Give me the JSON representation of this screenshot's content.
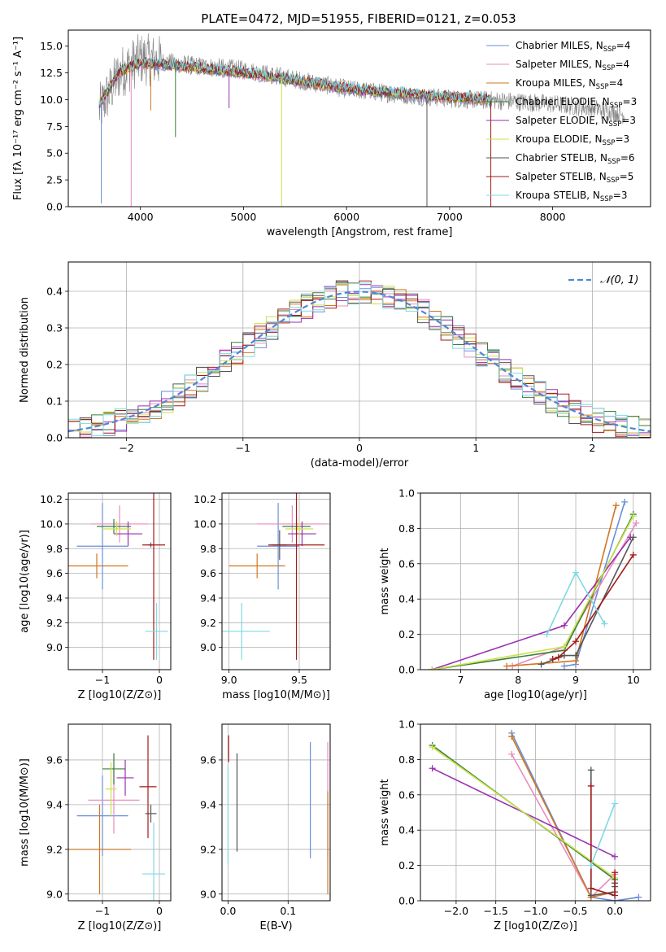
{
  "figure": {
    "title": "PLATE=0472, MJD=51955, FIBERID=0121, z=0.053"
  },
  "colors": {
    "Chabrier MILES": "#6a8fd8",
    "Salpeter MILES": "#e98bbf",
    "Kroupa MILES": "#d2761f",
    "Chabrier ELODIE": "#3a7d3a",
    "Salpeter ELODIE": "#9a2fb0",
    "Kroupa ELODIE": "#c9e24a",
    "Chabrier STELIB": "#555555",
    "Salpeter STELIB": "#a31a1a",
    "Kroupa STELIB": "#7ed9e3",
    "data": "#808080",
    "normal": "#4f86d6",
    "grid": "#b0b0b0"
  },
  "legend": [
    {
      "name": "Chabrier MILES",
      "nssp": "4"
    },
    {
      "name": "Salpeter MILES",
      "nssp": "4"
    },
    {
      "name": "Kroupa MILES",
      "nssp": "4"
    },
    {
      "name": "Chabrier ELODIE",
      "nssp": "3"
    },
    {
      "name": "Salpeter ELODIE",
      "nssp": "3"
    },
    {
      "name": "Kroupa ELODIE",
      "nssp": "3"
    },
    {
      "name": "Chabrier STELIB",
      "nssp": "6"
    },
    {
      "name": "Salpeter STELIB",
      "nssp": "5"
    },
    {
      "name": "Kroupa STELIB",
      "nssp": "3"
    }
  ],
  "chart_data": [
    {
      "id": "spectrum",
      "type": "line",
      "xlabel": "wavelength [Angstrom, rest frame]",
      "ylabel": "Flux [fλ 10⁻¹⁷ erg cm⁻² s⁻¹ A⁻¹]",
      "xlim": [
        3300,
        8950
      ],
      "ylim": [
        0,
        16.5
      ],
      "xticks": [
        4000,
        5000,
        6000,
        7000,
        8000
      ],
      "yticks": [
        0.0,
        2.5,
        5.0,
        7.5,
        10.0,
        12.5,
        15.0
      ],
      "grid": false,
      "legend_position": "top-right",
      "x_start": 3600,
      "x_end": 8700,
      "data_profile": [
        [
          3600,
          9.0
        ],
        [
          3800,
          12.5
        ],
        [
          4000,
          13.8
        ],
        [
          4200,
          13.6
        ],
        [
          4500,
          13.2
        ],
        [
          5000,
          12.8
        ],
        [
          5500,
          11.9
        ],
        [
          6000,
          11.0
        ],
        [
          6500,
          10.5
        ],
        [
          7000,
          10.1
        ],
        [
          7500,
          9.9
        ],
        [
          8000,
          9.6
        ],
        [
          8400,
          9.2
        ],
        [
          8700,
          8.6
        ]
      ],
      "model_profile": [
        [
          3600,
          9.5
        ],
        [
          3800,
          12.7
        ],
        [
          4000,
          13.4
        ],
        [
          4200,
          13.3
        ],
        [
          4500,
          13.0
        ],
        [
          5000,
          12.5
        ],
        [
          5500,
          11.8
        ],
        [
          6000,
          11.0
        ],
        [
          6500,
          10.6
        ],
        [
          7000,
          10.2
        ],
        [
          7400,
          10.0
        ]
      ],
      "spikes": [
        [
          3620,
          0.3
        ],
        [
          3910,
          0.0
        ],
        [
          4100,
          9.0
        ],
        [
          4340,
          6.5
        ],
        [
          4860,
          9.2
        ],
        [
          5370,
          0.0
        ],
        [
          6780,
          0.0
        ],
        [
          7400,
          0.0
        ]
      ]
    },
    {
      "id": "residuals",
      "type": "step",
      "xlabel": "(data-model)/error",
      "ylabel": "Normed distribution",
      "xlim": [
        -2.5,
        2.5
      ],
      "ylim": [
        0,
        0.48
      ],
      "xticks": [
        -2,
        -1,
        0,
        1,
        2
      ],
      "yticks": [
        0.0,
        0.1,
        0.2,
        0.3,
        0.4
      ],
      "grid": true,
      "legend_position": "top-right",
      "reference": {
        "name": "𝒩(0, 1)",
        "mean": 0,
        "sigma": 1
      },
      "bin_width": 0.1
    },
    {
      "id": "age-vs-Z",
      "type": "errorbar",
      "xlabel": "Z [log10(Z/Z⊙)]",
      "ylabel": "age [log10(age/yr)]",
      "xlim": [
        -1.6,
        0.2
      ],
      "ylim": [
        8.82,
        10.25
      ],
      "xticks": [
        -1,
        0
      ],
      "yticks": [
        9.0,
        9.2,
        9.4,
        9.6,
        9.8,
        10.0,
        10.2
      ],
      "grid": true,
      "points": [
        {
          "series": "Chabrier MILES",
          "x": -1.0,
          "xerr": 0.45,
          "y": 9.82,
          "yerr": 0.35
        },
        {
          "series": "Salpeter MILES",
          "x": -0.7,
          "xerr": 0.5,
          "y": 10.0,
          "yerr": 0.15
        },
        {
          "series": "Kroupa MILES",
          "x": -1.1,
          "xerr": 0.55,
          "y": 9.66,
          "yerr": 0.1
        },
        {
          "series": "Chabrier ELODIE",
          "x": -0.8,
          "xerr": 0.3,
          "y": 9.98,
          "yerr": 0.06
        },
        {
          "series": "Salpeter ELODIE",
          "x": -0.55,
          "xerr": 0.25,
          "y": 9.92,
          "yerr": 0.1
        },
        {
          "series": "Kroupa ELODIE",
          "x": -0.75,
          "xerr": 0.25,
          "y": 9.96,
          "yerr": 0.06
        },
        {
          "series": "Chabrier STELIB",
          "x": -0.15,
          "xerr": 0.05,
          "y": 9.83,
          "yerr": 0.02
        },
        {
          "series": "Salpeter STELIB",
          "x": -0.1,
          "xerr": 0.2,
          "y": 9.83,
          "yerr": 0.93
        },
        {
          "series": "Kroupa STELIB",
          "x": -0.05,
          "xerr": 0.2,
          "y": 9.13,
          "yerr": 0.23
        }
      ]
    },
    {
      "id": "age-vs-mass",
      "type": "errorbar",
      "xlabel": "mass [log10(M/M⊙)]",
      "ylabel": "",
      "xlim": [
        8.95,
        9.72
      ],
      "ylim": [
        8.82,
        10.25
      ],
      "xticks": [
        9.0,
        9.5
      ],
      "yticks": [
        9.0,
        9.2,
        9.4,
        9.6,
        9.8,
        10.0,
        10.2
      ],
      "grid": true,
      "points": [
        {
          "series": "Chabrier MILES",
          "x": 9.35,
          "xerr": 0.15,
          "y": 9.82,
          "yerr": 0.35
        },
        {
          "series": "Salpeter MILES",
          "x": 9.45,
          "xerr": 0.25,
          "y": 10.0,
          "yerr": 0.15
        },
        {
          "series": "Kroupa MILES",
          "x": 9.2,
          "xerr": 0.2,
          "y": 9.66,
          "yerr": 0.1
        },
        {
          "series": "Chabrier ELODIE",
          "x": 9.48,
          "xerr": 0.1,
          "y": 9.98,
          "yerr": 0.06
        },
        {
          "series": "Salpeter ELODIE",
          "x": 9.52,
          "xerr": 0.1,
          "y": 9.92,
          "yerr": 0.1
        },
        {
          "series": "Kroupa ELODIE",
          "x": 9.5,
          "xerr": 0.1,
          "y": 9.96,
          "yerr": 0.06
        },
        {
          "series": "Chabrier STELIB",
          "x": 9.36,
          "xerr": 0.05,
          "y": 9.83,
          "yerr": 0.12
        },
        {
          "series": "Salpeter STELIB",
          "x": 9.48,
          "xerr": 0.2,
          "y": 9.83,
          "yerr": 0.93
        },
        {
          "series": "Kroupa STELIB",
          "x": 9.09,
          "xerr": 0.2,
          "y": 9.13,
          "yerr": 0.23
        }
      ]
    },
    {
      "id": "massweight-vs-age",
      "type": "line",
      "xlabel": "age [log10(age/yr)]",
      "ylabel": "mass weight",
      "xlim": [
        6.3,
        10.3
      ],
      "ylim": [
        0,
        1.0
      ],
      "xticks": [
        7,
        8,
        9,
        10
      ],
      "yticks": [
        0.0,
        0.2,
        0.4,
        0.6,
        0.8,
        1.0
      ],
      "grid": true,
      "series": [
        {
          "name": "Chabrier MILES",
          "x": [
            8.8,
            9.0,
            9.85
          ],
          "y": [
            0.02,
            0.03,
            0.95
          ]
        },
        {
          "name": "Salpeter MILES",
          "x": [
            7.9,
            8.8,
            10.05
          ],
          "y": [
            0.02,
            0.13,
            0.83
          ]
        },
        {
          "name": "Kroupa MILES",
          "x": [
            7.8,
            9.0,
            9.7
          ],
          "y": [
            0.02,
            0.05,
            0.93
          ]
        },
        {
          "name": "Chabrier ELODIE",
          "x": [
            6.5,
            8.8,
            10.0
          ],
          "y": [
            0.0,
            0.11,
            0.88
          ]
        },
        {
          "name": "Salpeter ELODIE",
          "x": [
            6.5,
            8.8,
            9.95
          ],
          "y": [
            0.0,
            0.25,
            0.75
          ]
        },
        {
          "name": "Kroupa ELODIE",
          "x": [
            6.5,
            8.8,
            10.0
          ],
          "y": [
            0.0,
            0.13,
            0.87
          ]
        },
        {
          "name": "Chabrier STELIB",
          "x": [
            8.4,
            8.8,
            9.0,
            10.0
          ],
          "y": [
            0.03,
            0.08,
            0.08,
            0.75
          ]
        },
        {
          "name": "Salpeter STELIB",
          "x": [
            8.6,
            8.7,
            9.0,
            10.0
          ],
          "y": [
            0.06,
            0.07,
            0.16,
            0.65
          ]
        },
        {
          "name": "Kroupa STELIB",
          "x": [
            8.5,
            9.0,
            9.5
          ],
          "y": [
            0.2,
            0.55,
            0.26
          ]
        }
      ]
    },
    {
      "id": "mass-vs-Z",
      "type": "errorbar",
      "xlabel": "Z [log10(Z/Z⊙)]",
      "ylabel": "mass [log10(M/M⊙)]",
      "xlim": [
        -1.6,
        0.2
      ],
      "ylim": [
        8.97,
        9.76
      ],
      "xticks": [
        -1,
        0
      ],
      "yticks": [
        9.0,
        9.2,
        9.4,
        9.6
      ],
      "grid": true,
      "points": [
        {
          "series": "Chabrier MILES",
          "x": -1.0,
          "xerr": 0.45,
          "y": 9.35,
          "yerr": 0.18
        },
        {
          "series": "Salpeter MILES",
          "x": -0.8,
          "xerr": 0.45,
          "y": 9.42,
          "yerr": 0.15
        },
        {
          "series": "Kroupa MILES",
          "x": -1.05,
          "xerr": 0.55,
          "y": 9.2,
          "yerr": 0.2
        },
        {
          "series": "Chabrier ELODIE",
          "x": -0.8,
          "xerr": 0.2,
          "y": 9.56,
          "yerr": 0.07
        },
        {
          "series": "Salpeter ELODIE",
          "x": -0.6,
          "xerr": 0.15,
          "y": 9.52,
          "yerr": 0.08
        },
        {
          "series": "Kroupa ELODIE",
          "x": -0.85,
          "xerr": 0.1,
          "y": 9.47,
          "yerr": 0.12
        },
        {
          "series": "Chabrier STELIB",
          "x": -0.15,
          "xerr": 0.1,
          "y": 9.36,
          "yerr": 0.04
        },
        {
          "series": "Salpeter STELIB",
          "x": -0.2,
          "xerr": 0.15,
          "y": 9.48,
          "yerr": 0.23
        },
        {
          "series": "Kroupa STELIB",
          "x": -0.1,
          "xerr": 0.2,
          "y": 9.09,
          "yerr": 0.23
        }
      ]
    },
    {
      "id": "mass-vs-EBV",
      "type": "errorbar",
      "xlabel": "E(B-V)",
      "ylabel": "",
      "xlim": [
        -0.01,
        0.17
      ],
      "ylim": [
        8.97,
        9.76
      ],
      "xticks": [
        0.0,
        0.1
      ],
      "yticks": [
        9.0,
        9.2,
        9.4,
        9.6
      ],
      "grid": true,
      "points": [
        {
          "series": "Chabrier MILES",
          "x": 0.137,
          "xerr": 0,
          "y": 9.42,
          "yerr": 0.26
        },
        {
          "series": "Salpeter MILES",
          "x": 0.166,
          "xerr": 0,
          "y": 9.42,
          "yerr": 0.26
        },
        {
          "series": "Kroupa MILES",
          "x": 0.166,
          "xerr": 0,
          "y": 9.23,
          "yerr": 0.23
        },
        {
          "series": "Chabrier STELIB",
          "x": 0.015,
          "xerr": 0,
          "y": 9.41,
          "yerr": 0.22
        },
        {
          "series": "Salpeter STELIB",
          "x": 0.001,
          "xerr": 0,
          "y": 9.65,
          "yerr": 0.06
        },
        {
          "series": "Kroupa STELIB",
          "x": 0.0,
          "xerr": 0,
          "y": 9.35,
          "yerr": 0.22
        }
      ]
    },
    {
      "id": "massweight-vs-Z",
      "type": "line",
      "xlabel": "Z [log10(Z/Z⊙)]",
      "ylabel": "mass weight",
      "xlim": [
        -2.45,
        0.45
      ],
      "ylim": [
        0,
        1.0
      ],
      "xticks": [
        -2.0,
        -1.5,
        -1.0,
        -0.5,
        0.0
      ],
      "yticks": [
        0.0,
        0.2,
        0.4,
        0.6,
        0.8,
        1.0
      ],
      "grid": true,
      "series": [
        {
          "name": "Chabrier MILES",
          "x": [
            -1.3,
            -0.3,
            0.0,
            0.3
          ],
          "y": [
            0.95,
            0.02,
            0.0,
            0.02
          ]
        },
        {
          "name": "Salpeter MILES",
          "x": [
            -1.3,
            -0.3,
            0.0
          ],
          "y": [
            0.83,
            0.02,
            0.15
          ]
        },
        {
          "name": "Kroupa MILES",
          "x": [
            -1.3,
            -0.3,
            0.0
          ],
          "y": [
            0.93,
            0.02,
            0.05
          ]
        },
        {
          "name": "Chabrier ELODIE",
          "x": [
            -2.3,
            0.0
          ],
          "y": [
            0.88,
            0.12
          ]
        },
        {
          "name": "Salpeter ELODIE",
          "x": [
            -2.3,
            0.0
          ],
          "y": [
            0.75,
            0.25
          ]
        },
        {
          "name": "Kroupa ELODIE",
          "x": [
            -2.3,
            0.0
          ],
          "y": [
            0.87,
            0.13
          ]
        },
        {
          "name": "Chabrier STELIB",
          "x": [
            -0.3,
            -0.3,
            0.0,
            0.0,
            0.0
          ],
          "y": [
            0.74,
            0.03,
            0.05,
            0.1,
            0.08
          ]
        },
        {
          "name": "Salpeter STELIB",
          "x": [
            -0.3,
            -0.3,
            0.0,
            0.0
          ],
          "y": [
            0.65,
            0.07,
            0.03,
            0.16
          ]
        },
        {
          "name": "Kroupa STELIB",
          "x": [
            -0.3,
            0.0
          ],
          "y": [
            0.2,
            0.55
          ]
        }
      ]
    }
  ]
}
